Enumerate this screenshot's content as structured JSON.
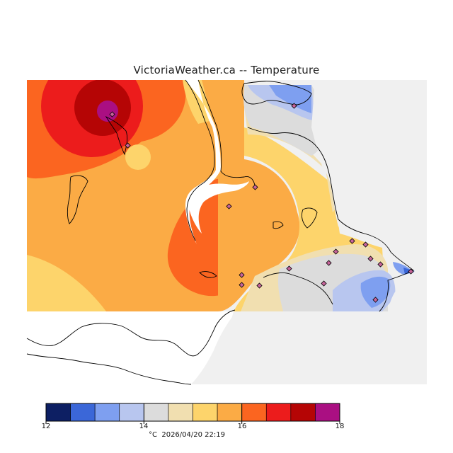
{
  "title": "VictoriaWeather.ca -- Temperature",
  "colorbar": {
    "unit": "°C",
    "timestamp": "2026/04/20 22:19",
    "ticks": [
      "12",
      "14",
      "16",
      "18"
    ],
    "range": [
      12,
      18
    ],
    "bins": [
      {
        "from": 12.0,
        "to": 12.5,
        "color": "#0d1f63"
      },
      {
        "from": 12.5,
        "to": 13.0,
        "color": "#3b67d8"
      },
      {
        "from": 13.0,
        "to": 13.5,
        "color": "#7e9ff0"
      },
      {
        "from": 13.5,
        "to": 14.0,
        "color": "#b8c6ef"
      },
      {
        "from": 14.0,
        "to": 14.5,
        "color": "#dcdcdc"
      },
      {
        "from": 14.5,
        "to": 15.0,
        "color": "#f1dfb0"
      },
      {
        "from": 15.0,
        "to": 15.5,
        "color": "#fdd46b"
      },
      {
        "from": 15.5,
        "to": 16.0,
        "color": "#fbab45"
      },
      {
        "from": 16.0,
        "to": 16.5,
        "color": "#fb6520"
      },
      {
        "from": 16.5,
        "to": 17.0,
        "color": "#ec1c1c"
      },
      {
        "from": 17.0,
        "to": 17.5,
        "color": "#b50505"
      },
      {
        "from": 17.5,
        "to": 18.0,
        "color": "#aa0f82"
      }
    ]
  },
  "colors": {
    "land_background": "#f0f0f0",
    "water": "#ffffff",
    "station_marker": "#c7649a",
    "coastline": "#000000"
  }
}
